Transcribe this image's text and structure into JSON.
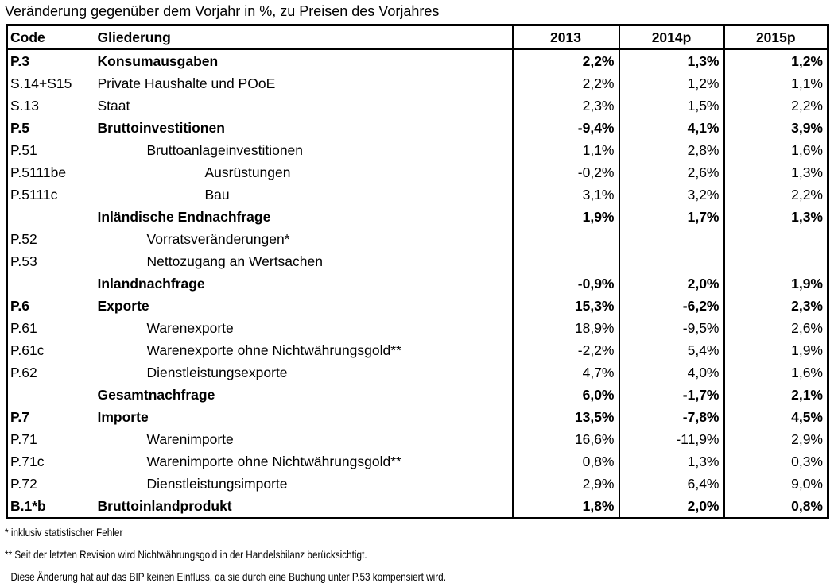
{
  "title": "Veränderung gegenüber dem Vorjahr in %, zu Preisen des Vorjahres",
  "table": {
    "headers": [
      "Code",
      "Gliederung",
      "2013",
      "2014p",
      "2015p"
    ],
    "rows": [
      {
        "code": "P.3",
        "label": "Konsumausgaben",
        "indent": 0,
        "bold": true,
        "values": [
          "2,2%",
          "1,3%",
          "1,2%"
        ]
      },
      {
        "code": "S.14+S15",
        "label": "Private Haushalte und POoE",
        "indent": 0,
        "bold": false,
        "values": [
          "2,2%",
          "1,2%",
          "1,1%"
        ]
      },
      {
        "code": "S.13",
        "label": "Staat",
        "indent": 0,
        "bold": false,
        "values": [
          "2,3%",
          "1,5%",
          "2,2%"
        ]
      },
      {
        "code": "P.5",
        "label": "Bruttoinvestitionen",
        "indent": 0,
        "bold": true,
        "values": [
          "-9,4%",
          "4,1%",
          "3,9%"
        ]
      },
      {
        "code": "P.51",
        "label": "Bruttoanlageinvestitionen",
        "indent": 1,
        "bold": false,
        "values": [
          "1,1%",
          "2,8%",
          "1,6%"
        ]
      },
      {
        "code": "P.5111be",
        "label": "Ausrüstungen",
        "indent": 2,
        "bold": false,
        "values": [
          "-0,2%",
          "2,6%",
          "1,3%"
        ]
      },
      {
        "code": "P.5111c",
        "label": "Bau",
        "indent": 2,
        "bold": false,
        "values": [
          "3,1%",
          "3,2%",
          "2,2%"
        ]
      },
      {
        "code": "",
        "label": "Inländische Endnachfrage",
        "indent": 0,
        "bold": true,
        "values": [
          "1,9%",
          "1,7%",
          "1,3%"
        ]
      },
      {
        "code": "P.52",
        "label": "Vorratsveränderungen*",
        "indent": 1,
        "bold": false,
        "values": [
          "",
          "",
          ""
        ]
      },
      {
        "code": "P.53",
        "label": "Nettozugang an Wertsachen",
        "indent": 1,
        "bold": false,
        "values": [
          "",
          "",
          ""
        ]
      },
      {
        "code": "",
        "label": "Inlandnachfrage",
        "indent": 0,
        "bold": true,
        "values": [
          "-0,9%",
          "2,0%",
          "1,9%"
        ]
      },
      {
        "code": "P.6",
        "label": "Exporte",
        "indent": 0,
        "bold": true,
        "values": [
          "15,3%",
          "-6,2%",
          "2,3%"
        ]
      },
      {
        "code": "P.61",
        "label": "Warenexporte",
        "indent": 1,
        "bold": false,
        "values": [
          "18,9%",
          "-9,5%",
          "2,6%"
        ]
      },
      {
        "code": "P.61c",
        "label": "Warenexporte ohne Nichtwährungsgold**",
        "indent": 1,
        "bold": false,
        "values": [
          "-2,2%",
          "5,4%",
          "1,9%"
        ]
      },
      {
        "code": "P.62",
        "label": "Dienstleistungsexporte",
        "indent": 1,
        "bold": false,
        "values": [
          "4,7%",
          "4,0%",
          "1,6%"
        ]
      },
      {
        "code": "",
        "label": "Gesamtnachfrage",
        "indent": 0,
        "bold": true,
        "values": [
          "6,0%",
          "-1,7%",
          "2,1%"
        ]
      },
      {
        "code": "P.7",
        "label": "Importe",
        "indent": 0,
        "bold": true,
        "values": [
          "13,5%",
          "-7,8%",
          "4,5%"
        ]
      },
      {
        "code": "P.71",
        "label": "Warenimporte",
        "indent": 1,
        "bold": false,
        "values": [
          "16,6%",
          "-11,9%",
          "2,9%"
        ]
      },
      {
        "code": "P.71c",
        "label": "Warenimporte ohne Nichtwährungsgold**",
        "indent": 1,
        "bold": false,
        "values": [
          "0,8%",
          "1,3%",
          "0,3%"
        ]
      },
      {
        "code": "P.72",
        "label": "Dienstleistungsimporte",
        "indent": 1,
        "bold": false,
        "values": [
          "2,9%",
          "6,4%",
          "9,0%"
        ]
      },
      {
        "code": "B.1*b",
        "label": "Bruttoinlandprodukt",
        "indent": 0,
        "bold": true,
        "values": [
          "1,8%",
          "2,0%",
          "0,8%"
        ]
      }
    ]
  },
  "footnotes": [
    "* inklusiv statistischer Fehler",
    "** Seit der letzten Revision wird Nichtwährungsgold in der Handelsbilanz berücksichtigt.",
    "Diese Änderung hat auf das BIP keinen Einfluss, da sie durch eine Buchung unter P.53 kompensiert wird."
  ],
  "colors": {
    "text": "#000000",
    "background": "#ffffff",
    "border": "#000000"
  }
}
